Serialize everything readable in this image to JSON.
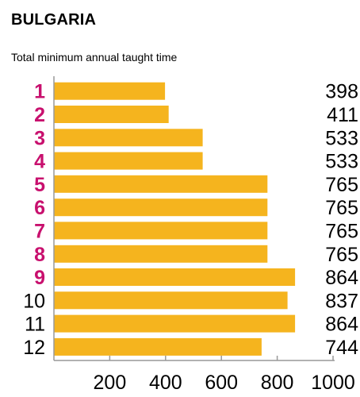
{
  "header": {
    "title": "BULGARIA",
    "subtitle": "Total minimum annual taught time"
  },
  "colors": {
    "bar": "#f5b41e",
    "accent_label": "#c8106e",
    "plain_label": "#000000",
    "axis": "#999999"
  },
  "chart_data": {
    "type": "bar",
    "orientation": "horizontal",
    "title": "BULGARIA",
    "subtitle": "Total minimum annual taught time",
    "categories": [
      "1",
      "2",
      "3",
      "4",
      "5",
      "6",
      "7",
      "8",
      "9",
      "10",
      "11",
      "12"
    ],
    "highlighted_categories": [
      "1",
      "2",
      "3",
      "4",
      "5",
      "6",
      "7",
      "8",
      "9"
    ],
    "values": [
      398,
      411,
      533,
      533,
      765,
      765,
      765,
      765,
      864,
      837,
      864,
      744
    ],
    "value_labels": [
      "398",
      "411",
      "533",
      "533",
      "765",
      "765",
      "765",
      "765",
      "864",
      "837",
      "864",
      "744"
    ],
    "xlim": [
      0,
      1000
    ],
    "xticks": [
      200,
      400,
      600,
      800,
      1000
    ],
    "xtick_labels": [
      "200",
      "400",
      "600",
      "800",
      "1000"
    ],
    "grid": false,
    "legend": "none"
  }
}
